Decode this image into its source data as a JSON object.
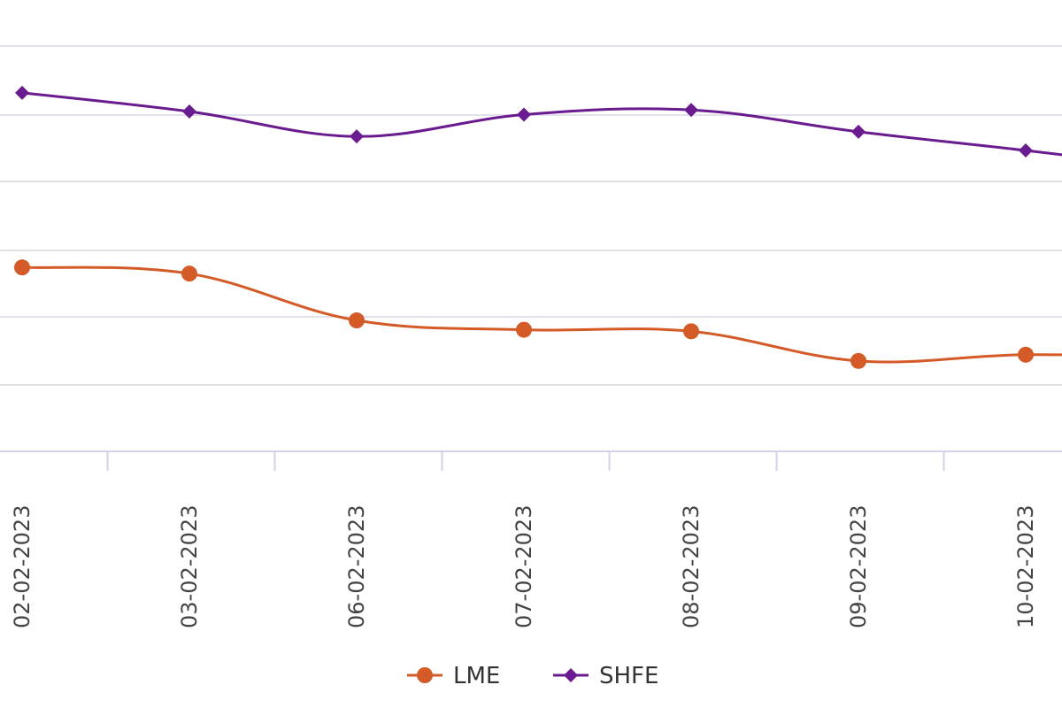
{
  "chart_data": {
    "type": "line",
    "x": [
      "02-02-2023",
      "03-02-2023",
      "06-02-2023",
      "07-02-2023",
      "08-02-2023",
      "09-02-2023",
      "10-02-2023"
    ],
    "series": [
      {
        "name": "LME",
        "color": "#d45a28",
        "marker": "circle",
        "values": [
          3.89,
          3.87,
          3.72,
          3.69,
          3.685,
          3.59,
          3.61
        ]
      },
      {
        "name": "SHFE",
        "color": "#6a1b8f",
        "marker": "diamond",
        "values": [
          4.45,
          4.39,
          4.31,
          4.38,
          4.395,
          4.325,
          4.265
        ]
      }
    ],
    "x_overflow_value": {
      "LME": 3.6,
      "SHFE": 4.2
    },
    "ylim": [
      3.3,
      4.6
    ],
    "grid": true,
    "legend": "bottom-center"
  }
}
